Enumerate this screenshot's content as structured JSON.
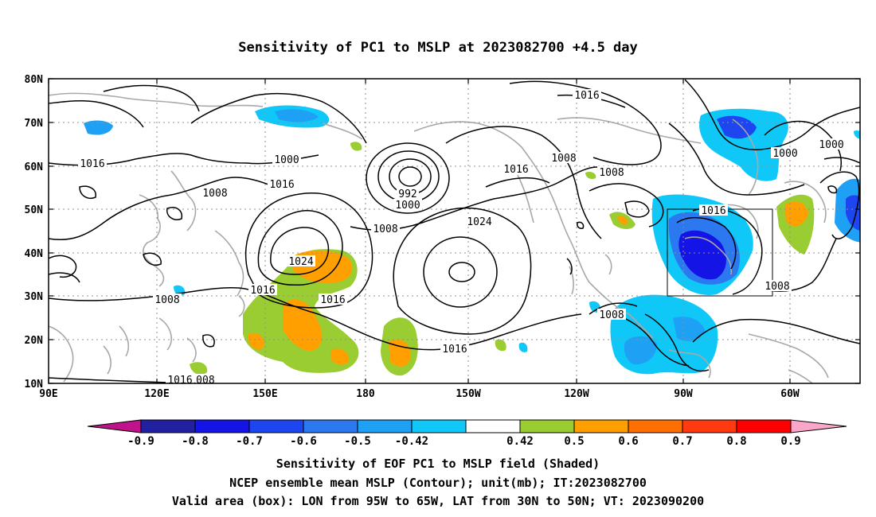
{
  "title": "Sensitivity of PC1 to MSLP at 2023082700 +4.5 day",
  "map": {
    "lon_labels": [
      "90E",
      "120E",
      "150E",
      "180",
      "150W",
      "120W",
      "90W",
      "60W"
    ],
    "lat_labels": [
      "80N",
      "70N",
      "60N",
      "50N",
      "40N",
      "30N",
      "20N",
      "10N"
    ],
    "valid_box": {
      "lon": [
        -95,
        -65
      ],
      "lat": [
        30,
        50
      ]
    },
    "contour_labels": [
      "1016",
      "1016",
      "1008",
      "1000",
      "1016",
      "1008",
      "992",
      "1000",
      "1016",
      "1008",
      "1024",
      "1016",
      "1016",
      "1008",
      "1024",
      "1008",
      "1016",
      "1008",
      "1016",
      "1000",
      "1000",
      "1008",
      "1008",
      "1016"
    ]
  },
  "colorbar": {
    "labels": [
      "-0.9",
      "-0.8",
      "-0.7",
      "-0.6",
      "-0.5",
      "-0.42",
      "0.42",
      "0.5",
      "0.6",
      "0.7",
      "0.8",
      "0.9"
    ],
    "colors": [
      "#2020a0",
      "#1414e6",
      "#1e46f0",
      "#2c78f0",
      "#1ea0f5",
      "#10c8f8",
      "#ffffff",
      "#9acd32",
      "#ffa000",
      "#ff7000",
      "#ff3a10",
      "#ff0000"
    ],
    "low_color": "#c0128a",
    "high_color": "#f9a6c8"
  },
  "captions": {
    "line1": "Sensitivity of EOF PC1 to MSLP field (Shaded)",
    "line2": "NCEP ensemble mean MSLP (Contour); unit(mb); IT:2023082700",
    "line3": "Valid area (box): LON from 95W to 65W, LAT from 30N to 50N; VT: 2023090200"
  }
}
